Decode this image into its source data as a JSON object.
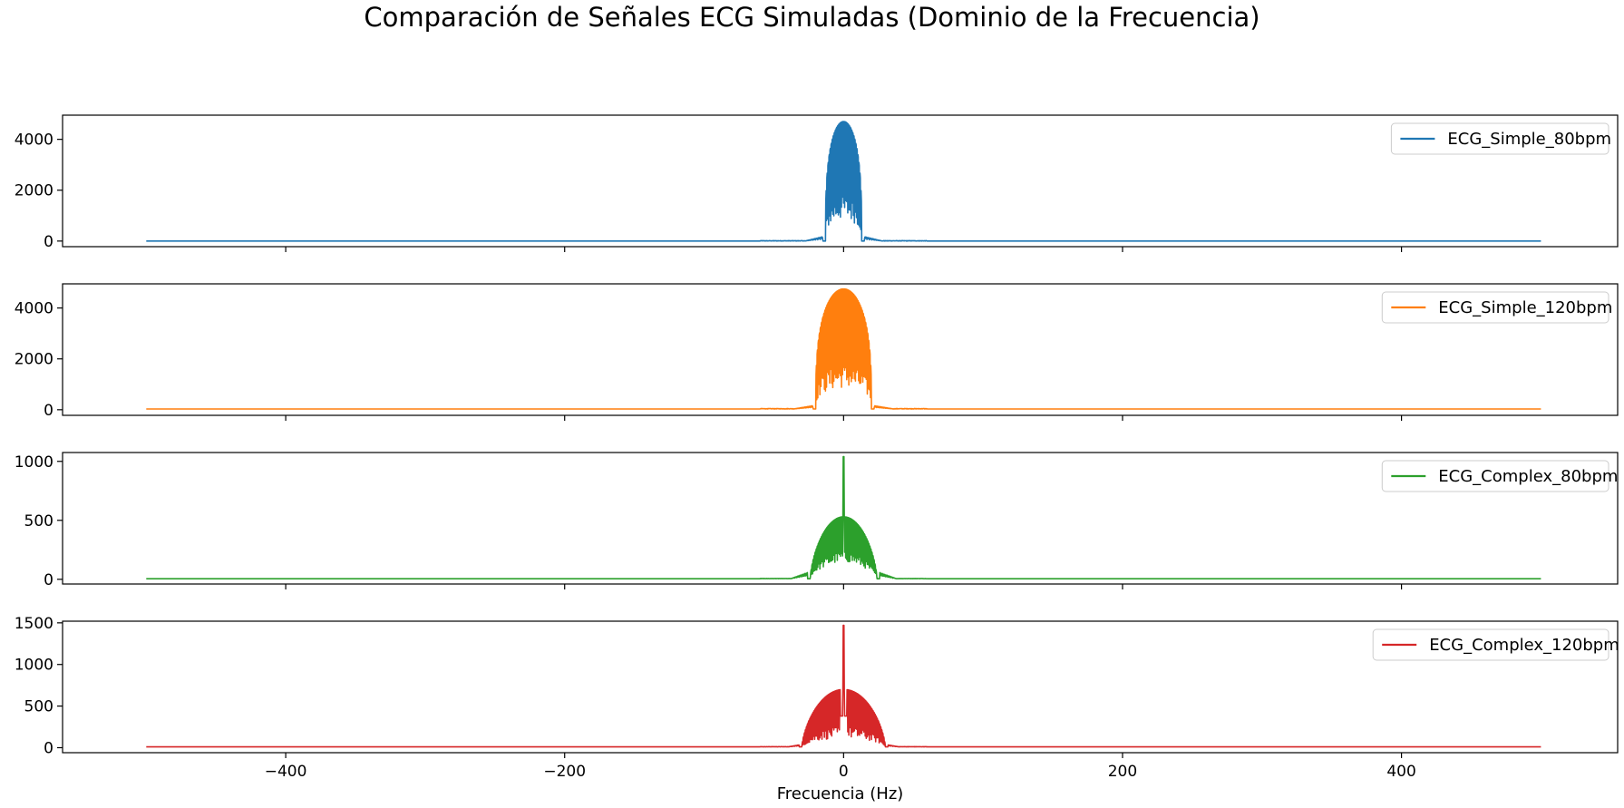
{
  "figure": {
    "title": "Comparación de Señales ECG Simuladas (Dominio de la Frecuencia)"
  },
  "chart_data": [
    {
      "type": "line",
      "series": [
        {
          "name": "ECG_Simple_80bpm",
          "color": "#1f77b4"
        }
      ],
      "xlim": [
        -560,
        555
      ],
      "ylim": [
        -220,
        4950
      ],
      "yticks": [
        0,
        2000,
        4000
      ],
      "xticks": [
        -400,
        -200,
        0,
        200,
        400
      ],
      "show_xticklabels": false,
      "xlabel": "",
      "legend": "top-right",
      "spectrum": {
        "x_range": [
          -500,
          500
        ],
        "baseline": 0,
        "peak": 4700,
        "halfwidth": 13,
        "shape": 3,
        "floor": 180,
        "envelope_halfwidth": 20,
        "envelope_peak": 200,
        "spike": 0
      }
    },
    {
      "type": "line",
      "series": [
        {
          "name": "ECG_Simple_120bpm",
          "color": "#ff7f0e"
        }
      ],
      "xlim": [
        -560,
        555
      ],
      "ylim": [
        -220,
        4950
      ],
      "yticks": [
        0,
        2000,
        4000
      ],
      "xticks": [
        -400,
        -200,
        0,
        200,
        400
      ],
      "show_xticklabels": false,
      "xlabel": "",
      "legend": "top-right",
      "spectrum": {
        "x_range": [
          -500,
          500
        ],
        "baseline": 30,
        "peak": 4750,
        "halfwidth": 20,
        "shape": 3,
        "floor": 150,
        "envelope_halfwidth": 28,
        "envelope_peak": 150,
        "spike": 0
      }
    },
    {
      "type": "line",
      "series": [
        {
          "name": "ECG_Complex_80bpm",
          "color": "#2ca02c"
        }
      ],
      "xlim": [
        -560,
        555
      ],
      "ylim": [
        -40,
        1075
      ],
      "yticks": [
        0,
        500,
        1000
      ],
      "xticks": [
        -400,
        -200,
        0,
        200,
        400
      ],
      "show_xticklabels": false,
      "xlabel": "",
      "legend": "top-right",
      "spectrum": {
        "x_range": [
          -500,
          500
        ],
        "baseline": 5,
        "peak": 530,
        "halfwidth": 24,
        "shape": 1.5,
        "floor": 80,
        "envelope_halfwidth": 30,
        "envelope_peak": 60,
        "spike": 1040
      }
    },
    {
      "type": "line",
      "series": [
        {
          "name": "ECG_Complex_120bpm",
          "color": "#d62728"
        }
      ],
      "xlim": [
        -560,
        555
      ],
      "ylim": [
        -60,
        1520
      ],
      "yticks": [
        0,
        500,
        1000,
        1500
      ],
      "xticks": [
        -400,
        -200,
        0,
        200,
        400
      ],
      "show_xticklabels": true,
      "xlabel": "Frecuencia (Hz)",
      "legend": "top-right",
      "spectrum": {
        "x_range": [
          -500,
          500
        ],
        "baseline": 10,
        "peak": 700,
        "halfwidth": 30,
        "shape": 1.5,
        "floor": 0,
        "envelope_halfwidth": 32,
        "envelope_peak": 30,
        "spike": 1470,
        "dip": 380
      }
    }
  ]
}
